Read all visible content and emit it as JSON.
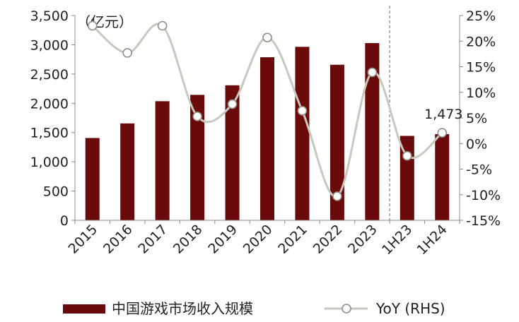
{
  "chart_data": {
    "type": "bar",
    "categories": [
      "2015",
      "2016",
      "2017",
      "2018",
      "2019",
      "2020",
      "2021",
      "2022",
      "2023",
      "1H23",
      "1H24"
    ],
    "unit_label": "（亿元）",
    "series": [
      {
        "name": "中国游戏市场收入规模",
        "type": "bar",
        "axis": "left",
        "color": "#6b0a0a",
        "values": [
          1407,
          1656,
          2036,
          2144,
          2308,
          2787,
          2965,
          2659,
          3029,
          1443,
          1473
        ]
      },
      {
        "name": "YoY (RHS)",
        "type": "line",
        "axis": "right",
        "color": "#c8c8bd",
        "values": [
          23.0,
          17.7,
          23.0,
          5.3,
          7.7,
          20.7,
          6.4,
          -10.3,
          13.9,
          -2.4,
          2.1
        ]
      }
    ],
    "y_left": {
      "min": 0,
      "max": 3500,
      "step": 500,
      "tick_labels": [
        "0",
        "500",
        "1,000",
        "1,500",
        "2,000",
        "2,500",
        "3,000",
        "3,500"
      ]
    },
    "y_right": {
      "min": -15,
      "max": 25,
      "step": 5,
      "tick_labels": [
        "-15%",
        "-10%",
        "-5%",
        "0%",
        "5%",
        "10%",
        "15%",
        "20%",
        "25%"
      ]
    },
    "data_labels": [
      {
        "category": "1H24",
        "text": "1,473"
      }
    ],
    "divider_after": "2023",
    "legend": {
      "position": "bottom"
    },
    "grid": false
  }
}
